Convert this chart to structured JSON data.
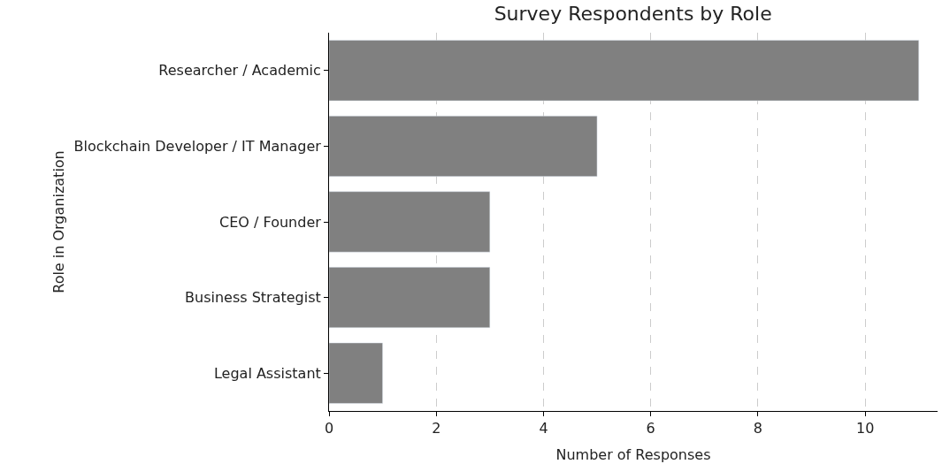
{
  "chart_data": {
    "type": "bar",
    "orientation": "horizontal",
    "title": "Survey Respondents by Role",
    "xlabel": "Number of Responses",
    "ylabel": "Role in Organization",
    "categories": [
      "Researcher / Academic",
      "Blockchain Developer / IT Manager",
      "CEO / Founder",
      "Business Strategist",
      "Legal Assistant"
    ],
    "values": [
      11,
      5,
      3,
      3,
      1
    ],
    "color": "#808080",
    "xlim": [
      0,
      11.35
    ],
    "xticks": [
      0,
      2,
      4,
      6,
      8,
      10
    ],
    "grid": "x"
  }
}
